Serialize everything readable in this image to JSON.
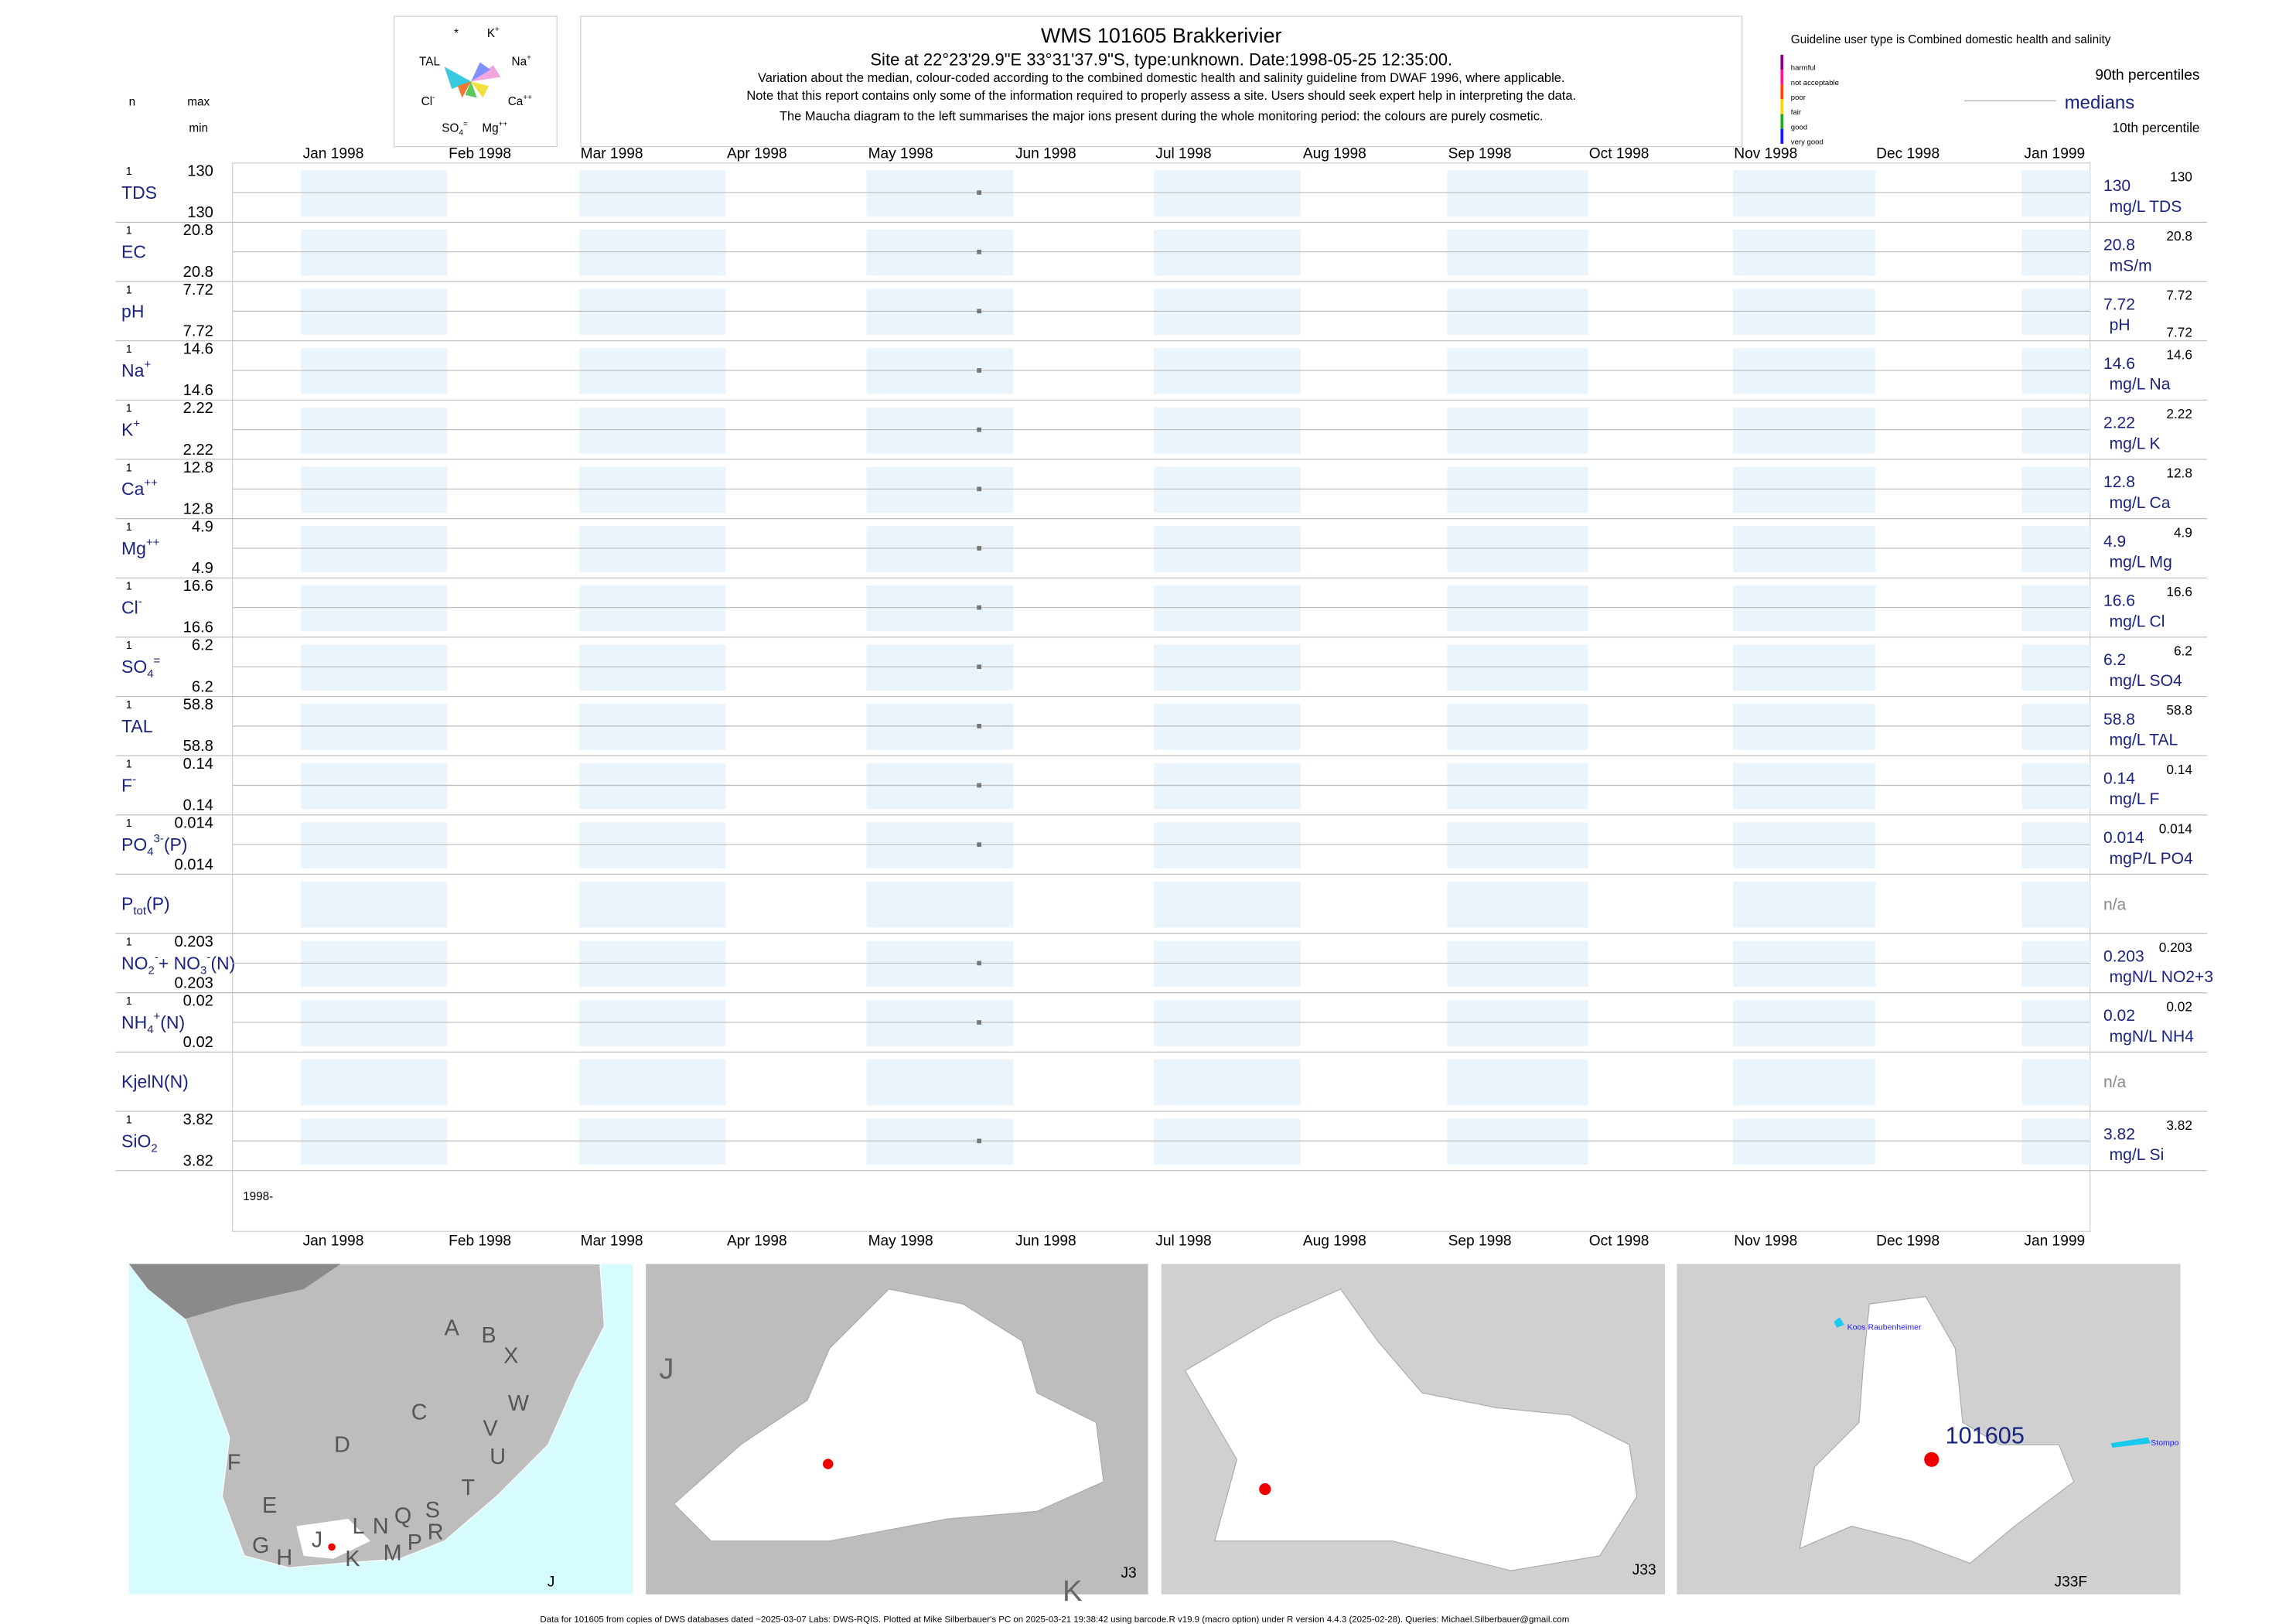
{
  "header": {
    "title": "WMS 101605  Brakkerivier",
    "subtitle": "Site at 22°23'29.9\"E 33°31'37.9\"S, type:unknown. Date:1998-05-25 12:35:00.",
    "notes": [
      "Variation about the median,  colour-coded according to the combined domestic health and salinity guideline from DWAF 1996, where applicable.",
      "Note that this report contains only some of the information required to properly assess a site. Users should seek expert help in interpreting the data.",
      "The Maucha diagram to the left summarises the major ions present during the whole monitoring period: the colours are purely cosmetic."
    ]
  },
  "maucha": {
    "labels": [
      [
        {
          "text": "*"
        }
      ],
      [
        {
          "text": "K"
        },
        {
          "sup": "+"
        }
      ],
      [
        {
          "text": "TAL"
        }
      ],
      [
        {
          "text": "Na"
        },
        {
          "sup": "+"
        }
      ],
      [
        {
          "text": "Cl"
        },
        {
          "sup": "-"
        }
      ],
      [
        {
          "text": "Ca"
        },
        {
          "sup": "++"
        }
      ],
      [
        {
          "text": "SO"
        },
        {
          "sub": "4"
        },
        {
          "sup": "="
        }
      ],
      [
        {
          "text": "Mg"
        },
        {
          "sup": "++"
        }
      ]
    ]
  },
  "legend": {
    "heading": "Guideline user type is Combined domestic health and salinity",
    "classes": [
      "harmful",
      "not acceptable",
      "poor",
      "fair",
      "good",
      "very good"
    ],
    "p90": "90th percentiles",
    "median": "medians",
    "p10": "10th percentile"
  },
  "columns": {
    "n": "n",
    "max": "max",
    "min": "min"
  },
  "months": [
    "Jan 1998",
    "Feb 1998",
    "Mar 1998",
    "Apr 1998",
    "May 1998",
    "Jun 1998",
    "Jul 1998",
    "Aug 1998",
    "Sep 1998",
    "Oct 1998",
    "Nov 1998",
    "Dec 1998",
    "Jan 1999"
  ],
  "start_label": "1998-",
  "rows": [
    {
      "name": [
        {
          "text": "TDS"
        }
      ],
      "n": 1,
      "max": 130,
      "min": 130,
      "median": 130,
      "p90": 130,
      "unit": "mg/L TDS"
    },
    {
      "name": [
        {
          "text": "EC"
        }
      ],
      "n": 1,
      "max": 20.8,
      "min": 20.8,
      "median": 20.8,
      "p90": 20.8,
      "unit": "mS/m"
    },
    {
      "name": [
        {
          "text": "pH"
        }
      ],
      "n": 1,
      "max": 7.72,
      "min": 7.72,
      "median": 7.72,
      "p90": 7.72,
      "p10": 7.72,
      "unit": "pH"
    },
    {
      "name": [
        {
          "text": "Na"
        },
        {
          "sup": "+"
        }
      ],
      "n": 1,
      "max": 14.6,
      "min": 14.6,
      "median": 14.6,
      "p90": 14.6,
      "unit": "mg/L Na"
    },
    {
      "name": [
        {
          "text": "K"
        },
        {
          "sup": "+"
        }
      ],
      "n": 1,
      "max": 2.22,
      "min": 2.22,
      "median": 2.22,
      "p90": 2.22,
      "unit": "mg/L K"
    },
    {
      "name": [
        {
          "text": "Ca"
        },
        {
          "sup": "++"
        }
      ],
      "n": 1,
      "max": 12.8,
      "min": 12.8,
      "median": 12.8,
      "p90": 12.8,
      "unit": "mg/L Ca"
    },
    {
      "name": [
        {
          "text": "Mg"
        },
        {
          "sup": "++"
        }
      ],
      "n": 1,
      "max": 4.9,
      "min": 4.9,
      "median": 4.9,
      "p90": 4.9,
      "unit": "mg/L Mg"
    },
    {
      "name": [
        {
          "text": "Cl"
        },
        {
          "sup": "-"
        }
      ],
      "n": 1,
      "max": 16.6,
      "min": 16.6,
      "median": 16.6,
      "p90": 16.6,
      "unit": "mg/L Cl"
    },
    {
      "name": [
        {
          "text": "SO"
        },
        {
          "sub": "4"
        },
        {
          "sup": "="
        }
      ],
      "n": 1,
      "max": 6.2,
      "min": 6.2,
      "median": 6.2,
      "p90": 6.2,
      "unit": "mg/L SO4"
    },
    {
      "name": [
        {
          "text": "TAL"
        }
      ],
      "n": 1,
      "max": 58.8,
      "min": 58.8,
      "median": 58.8,
      "p90": 58.8,
      "unit": "mg/L TAL"
    },
    {
      "name": [
        {
          "text": "F"
        },
        {
          "sup": "-"
        }
      ],
      "n": 1,
      "max": 0.14,
      "min": 0.14,
      "median": 0.14,
      "p90": 0.14,
      "unit": "mg/L F"
    },
    {
      "name": [
        {
          "text": "PO"
        },
        {
          "sub": "4"
        },
        {
          "sup": "3-"
        },
        {
          "text": "(P)"
        }
      ],
      "n": 1,
      "max": 0.014,
      "min": 0.014,
      "median": 0.014,
      "p90": 0.014,
      "unit": "mgP/L PO4"
    },
    {
      "name": [
        {
          "text": "P"
        },
        {
          "sub": "tot"
        },
        {
          "text": "(P)"
        }
      ],
      "median": "n/a"
    },
    {
      "name": [
        {
          "text": "NO"
        },
        {
          "sub": "2"
        },
        {
          "sup": "-"
        },
        {
          "text": "+ NO"
        },
        {
          "sub": "3"
        },
        {
          "sup": "-"
        },
        {
          "text": "(N)"
        }
      ],
      "n": 1,
      "max": 0.203,
      "min": 0.203,
      "median": 0.203,
      "p90": 0.203,
      "unit": "mgN/L NO2+3"
    },
    {
      "name": [
        {
          "text": "NH"
        },
        {
          "sub": "4"
        },
        {
          "sup": "+"
        },
        {
          "text": "(N)"
        }
      ],
      "n": 1,
      "max": 0.02,
      "min": 0.02,
      "median": 0.02,
      "p90": 0.02,
      "unit": "mgN/L NH4"
    },
    {
      "name": [
        {
          "text": "KjelN(N)"
        }
      ],
      "median": "n/a"
    },
    {
      "name": [
        {
          "text": "SiO"
        },
        {
          "sub": "2"
        }
      ],
      "n": 1,
      "max": 3.82,
      "min": 3.82,
      "median": 3.82,
      "p90": 3.82,
      "unit": "mg/L Si"
    }
  ],
  "maps": {
    "regions": [
      "A",
      "B",
      "X",
      "W",
      "C",
      "V",
      "U",
      "D",
      "F",
      "E",
      "T",
      "S",
      "R",
      "Q",
      "N",
      "L",
      "P",
      "M",
      "J",
      "K",
      "G",
      "H"
    ],
    "panels": [
      "J",
      "J3",
      "J33",
      "J33F"
    ],
    "drainage": [
      "J",
      "K"
    ],
    "site": "101605",
    "dams": [
      "Koos Raubenheimer",
      "Stompo"
    ]
  },
  "footer": "Data for 101605 from copies of DWS databases dated ~2025-03-07 Labs: DWS-RQIS. Plotted at Mike Silberbauer's PC on 2025-03-21 19:38:42 using barcode.R v19.9 (macro option) under R version 4.4.3 (2025-02-28). Queries: Michael.Silberbauer@gmail.com"
}
